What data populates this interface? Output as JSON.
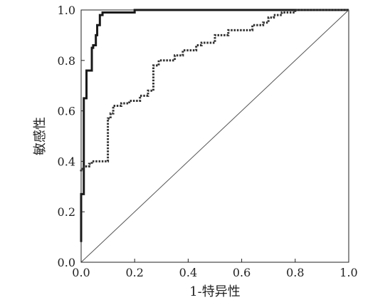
{
  "chart_data": {
    "type": "line",
    "xlabel": "1-特异性",
    "ylabel": "敏感性",
    "xlim": [
      0.0,
      1.0
    ],
    "ylim": [
      0.0,
      1.0
    ],
    "x_ticks": [
      "0.0",
      "0.2",
      "0.4",
      "0.6",
      "0.8",
      "1.0"
    ],
    "y_ticks": [
      "0.0",
      "0.2",
      "0.4",
      "0.6",
      "0.8",
      "1.0"
    ],
    "grid": false,
    "legend": "none",
    "series": [
      {
        "style": "solid-thick",
        "color": "#1a1a1a",
        "step": true,
        "points": [
          [
            0.0,
            0.08
          ],
          [
            0.0,
            0.26
          ],
          [
            0.01,
            0.27
          ],
          [
            0.01,
            0.57
          ],
          [
            0.02,
            0.65
          ],
          [
            0.025,
            0.76
          ],
          [
            0.04,
            0.76
          ],
          [
            0.045,
            0.85
          ],
          [
            0.055,
            0.86
          ],
          [
            0.06,
            0.9
          ],
          [
            0.07,
            0.94
          ],
          [
            0.08,
            0.98
          ],
          [
            0.12,
            0.99
          ],
          [
            0.2,
            0.99
          ],
          [
            0.58,
            1.0
          ],
          [
            1.0,
            1.0
          ]
        ]
      },
      {
        "style": "dotted-thick",
        "color": "#333333",
        "step": true,
        "points": [
          [
            0.0,
            0.36
          ],
          [
            0.01,
            0.37
          ],
          [
            0.03,
            0.38
          ],
          [
            0.04,
            0.39
          ],
          [
            0.1,
            0.4
          ],
          [
            0.1,
            0.55
          ],
          [
            0.11,
            0.57
          ],
          [
            0.12,
            0.59
          ],
          [
            0.15,
            0.62
          ],
          [
            0.18,
            0.63
          ],
          [
            0.22,
            0.64
          ],
          [
            0.25,
            0.66
          ],
          [
            0.27,
            0.68
          ],
          [
            0.29,
            0.78
          ],
          [
            0.35,
            0.8
          ],
          [
            0.38,
            0.82
          ],
          [
            0.43,
            0.84
          ],
          [
            0.45,
            0.86
          ],
          [
            0.5,
            0.87
          ],
          [
            0.55,
            0.9
          ],
          [
            0.57,
            0.92
          ],
          [
            0.64,
            0.92
          ],
          [
            0.68,
            0.94
          ],
          [
            0.7,
            0.95
          ],
          [
            0.72,
            0.97
          ],
          [
            0.75,
            0.98
          ],
          [
            0.8,
            0.99
          ],
          [
            0.8,
            1.0
          ],
          [
            1.0,
            1.0
          ]
        ]
      },
      {
        "style": "solid-thin",
        "color": "#555555",
        "step": false,
        "points": [
          [
            0.0,
            0.0
          ],
          [
            1.0,
            1.0
          ]
        ]
      }
    ]
  }
}
